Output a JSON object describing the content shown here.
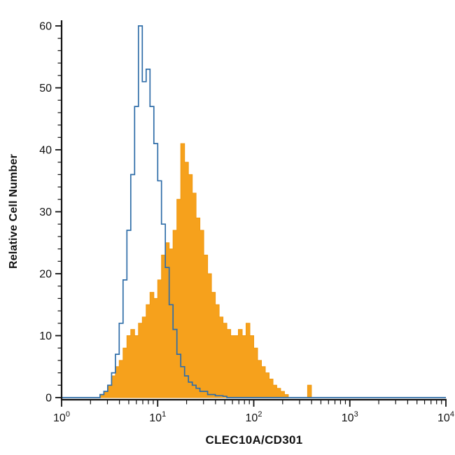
{
  "figure": {
    "background": "#ffffff",
    "axis_color": "#111111"
  },
  "chart_data": {
    "type": "area",
    "mark": "step-histogram-overlay",
    "title": "",
    "xlabel": "CLEC10A/CD301",
    "ylabel": "Relative Cell Number",
    "x_scale": "log10",
    "x_range_exponents": [
      0,
      4
    ],
    "x_tick_exponents": [
      0,
      1,
      2,
      3,
      4
    ],
    "x_tick_labels": [
      "10⁰",
      "10¹",
      "10²",
      "10³",
      "10⁴"
    ],
    "ylim": [
      0,
      60
    ],
    "y_ticks": [
      0,
      10,
      20,
      30,
      40,
      50,
      60
    ],
    "y_minor_step": 2,
    "grid": "off",
    "legend": "none",
    "bin_log_width": 0.04,
    "series": [
      {
        "name": "filled-orange-histogram",
        "style": "filled",
        "color": "#F6A11C",
        "outline": "#EF9810",
        "peak": {
          "x": 18,
          "y": 41
        },
        "values": [
          0,
          0,
          0,
          0,
          0,
          0,
          0,
          0,
          0,
          0,
          0.5,
          1,
          2,
          3.5,
          5,
          6,
          8,
          10,
          11,
          10,
          12,
          13,
          15,
          17,
          16,
          19,
          23,
          25,
          24,
          27,
          32,
          41,
          38,
          36,
          33,
          29,
          27,
          23,
          20,
          17,
          15,
          13,
          12,
          11,
          10,
          10,
          11,
          10,
          12,
          10,
          8,
          6,
          5,
          4,
          3,
          2,
          1.5,
          1,
          0.5,
          0,
          0,
          0,
          0,
          0,
          2,
          0,
          0,
          0,
          0,
          0,
          0,
          0,
          0,
          0,
          0,
          0,
          0,
          0,
          0,
          0,
          0,
          0,
          0,
          0,
          0,
          0,
          0,
          0,
          0,
          0,
          0,
          0,
          0,
          0,
          0,
          0,
          0,
          0,
          0,
          0
        ]
      },
      {
        "name": "open-blue-histogram",
        "style": "open",
        "color": "#2F6DA8",
        "peak": {
          "x": 6.6,
          "y": 60
        },
        "values": [
          0,
          0,
          0,
          0,
          0,
          0,
          0,
          0,
          0,
          0,
          0.5,
          1,
          2,
          4,
          7,
          12,
          19,
          27,
          36,
          47,
          60,
          51,
          53,
          47,
          41,
          35,
          28,
          21,
          15,
          11,
          7,
          5,
          3.5,
          2.5,
          2,
          1.5,
          1,
          1,
          0.5,
          0.5,
          0.3,
          0.3,
          0.2,
          0,
          0,
          0,
          0,
          0,
          0,
          0,
          0,
          0,
          0,
          0,
          0,
          0,
          0,
          0,
          0,
          0,
          0,
          0,
          0,
          0,
          0,
          0,
          0,
          0,
          0,
          0,
          0,
          0,
          0,
          0,
          0,
          0,
          0,
          0,
          0,
          0,
          0,
          0,
          0,
          0,
          0,
          0,
          0,
          0,
          0,
          0,
          0,
          0,
          0,
          0,
          0,
          0,
          0,
          0,
          0,
          0
        ]
      }
    ]
  }
}
